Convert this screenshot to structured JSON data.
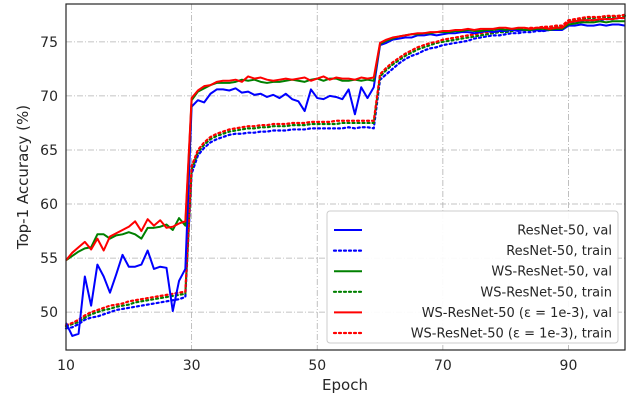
{
  "chart_data": {
    "type": "line",
    "title": "",
    "xlabel": "Epoch",
    "ylabel": "Top-1 Accuracy (%)",
    "xlim": [
      10,
      99
    ],
    "ylim": [
      46.5,
      78.5
    ],
    "xticks": [
      10,
      30,
      50,
      70,
      90
    ],
    "yticks": [
      50,
      55,
      60,
      65,
      70,
      75
    ],
    "xtick_labels": [
      "10",
      "30",
      "50",
      "70",
      "90"
    ],
    "ytick_labels": [
      "50",
      "55",
      "60",
      "65",
      "70",
      "75"
    ],
    "grid": true,
    "legend_position": "lower-right",
    "x": [
      10,
      11,
      12,
      13,
      14,
      15,
      16,
      17,
      18,
      19,
      20,
      21,
      22,
      23,
      24,
      25,
      26,
      27,
      28,
      29,
      30,
      31,
      32,
      33,
      34,
      35,
      36,
      37,
      38,
      39,
      40,
      41,
      42,
      43,
      44,
      45,
      46,
      47,
      48,
      49,
      50,
      51,
      52,
      53,
      54,
      55,
      56,
      57,
      58,
      59,
      60,
      61,
      62,
      63,
      64,
      65,
      66,
      67,
      68,
      69,
      70,
      71,
      72,
      73,
      74,
      75,
      76,
      77,
      78,
      79,
      80,
      81,
      82,
      83,
      84,
      85,
      86,
      87,
      88,
      89,
      90,
      91,
      92,
      93,
      94,
      95,
      96,
      97,
      98,
      99
    ],
    "series": [
      {
        "name": "ResNet-50, val",
        "color": "#0000ff",
        "style": "solid",
        "values": [
          49.0,
          47.8,
          48.0,
          53.3,
          50.6,
          54.4,
          53.3,
          51.8,
          53.5,
          55.3,
          54.2,
          54.2,
          54.4,
          55.7,
          54.0,
          54.2,
          54.1,
          50.1,
          52.9,
          54.0,
          69.0,
          69.6,
          69.4,
          70.2,
          70.6,
          70.6,
          70.5,
          70.7,
          70.3,
          70.4,
          70.1,
          70.2,
          69.9,
          70.1,
          69.8,
          70.2,
          69.7,
          69.5,
          68.6,
          70.6,
          69.8,
          69.7,
          70.0,
          69.9,
          69.7,
          70.6,
          68.3,
          70.8,
          69.8,
          70.8,
          74.7,
          74.9,
          75.2,
          75.3,
          75.4,
          75.4,
          75.6,
          75.6,
          75.7,
          75.6,
          75.7,
          75.8,
          75.8,
          75.9,
          75.9,
          75.8,
          75.9,
          76.0,
          75.9,
          76.0,
          76.0,
          76.1,
          76.0,
          76.1,
          76.1,
          76.1,
          76.0,
          76.1,
          76.1,
          76.1,
          76.5,
          76.5,
          76.6,
          76.5,
          76.5,
          76.6,
          76.5,
          76.6,
          76.6,
          76.5
        ]
      },
      {
        "name": "ResNet-50, train",
        "color": "#0000ff",
        "style": "dotted",
        "values": [
          48.5,
          48.6,
          48.9,
          49.3,
          49.5,
          49.6,
          49.8,
          50.0,
          50.2,
          50.3,
          50.4,
          50.5,
          50.6,
          50.7,
          50.8,
          50.9,
          51.0,
          51.1,
          51.2,
          51.4,
          62.8,
          64.5,
          65.2,
          65.7,
          66.0,
          66.2,
          66.4,
          66.5,
          66.5,
          66.6,
          66.6,
          66.7,
          66.7,
          66.8,
          66.8,
          66.8,
          66.9,
          66.9,
          66.9,
          67.0,
          67.0,
          67.0,
          67.0,
          67.0,
          67.0,
          67.1,
          67.0,
          67.1,
          67.1,
          67.0,
          71.5,
          72.0,
          72.5,
          73.0,
          73.4,
          73.7,
          73.9,
          74.2,
          74.4,
          74.5,
          74.7,
          74.8,
          74.9,
          75.0,
          75.1,
          75.3,
          75.4,
          75.5,
          75.6,
          75.6,
          75.7,
          75.8,
          75.8,
          75.9,
          75.9,
          76.0,
          76.0,
          76.1,
          76.1,
          76.2,
          76.6,
          76.8,
          76.9,
          77.0,
          77.0,
          77.0,
          77.1,
          77.1,
          77.2,
          77.2
        ]
      },
      {
        "name": "WS-ResNet-50, val",
        "color": "#008000",
        "style": "solid",
        "values": [
          54.8,
          55.2,
          55.6,
          55.9,
          56.0,
          57.2,
          57.2,
          56.8,
          57.1,
          57.2,
          57.4,
          57.2,
          56.8,
          57.8,
          57.8,
          57.9,
          58.1,
          57.6,
          58.7,
          58.0,
          69.6,
          70.4,
          70.7,
          71.0,
          71.2,
          71.2,
          71.2,
          71.3,
          71.5,
          71.4,
          71.5,
          71.3,
          71.2,
          71.3,
          71.3,
          71.4,
          71.5,
          71.4,
          71.3,
          71.5,
          71.6,
          71.4,
          71.6,
          71.6,
          71.4,
          71.4,
          71.5,
          71.4,
          71.5,
          71.4,
          74.8,
          75.1,
          75.3,
          75.5,
          75.6,
          75.7,
          75.7,
          75.8,
          75.8,
          75.9,
          75.9,
          75.9,
          76.0,
          76.0,
          76.1,
          76.0,
          76.0,
          76.1,
          76.1,
          76.2,
          76.1,
          76.2,
          76.2,
          76.1,
          76.1,
          76.2,
          76.2,
          76.1,
          76.2,
          76.2,
          76.6,
          76.7,
          76.8,
          76.8,
          76.8,
          76.9,
          76.8,
          76.9,
          76.9,
          76.9
        ]
      },
      {
        "name": "WS-ResNet-50, train",
        "color": "#008000",
        "style": "dotted",
        "values": [
          48.7,
          48.9,
          49.1,
          49.5,
          49.8,
          50.0,
          50.2,
          50.3,
          50.5,
          50.6,
          50.7,
          50.9,
          51.0,
          51.1,
          51.2,
          51.3,
          51.4,
          51.5,
          51.6,
          51.7,
          63.2,
          64.8,
          65.5,
          66.0,
          66.3,
          66.5,
          66.7,
          66.8,
          66.9,
          67.0,
          67.0,
          67.1,
          67.1,
          67.2,
          67.2,
          67.2,
          67.3,
          67.3,
          67.3,
          67.4,
          67.4,
          67.4,
          67.4,
          67.4,
          67.5,
          67.5,
          67.5,
          67.5,
          67.5,
          67.5,
          71.8,
          72.4,
          72.9,
          73.3,
          73.7,
          74.0,
          74.3,
          74.5,
          74.7,
          74.9,
          75.0,
          75.1,
          75.2,
          75.3,
          75.4,
          75.5,
          75.6,
          75.7,
          75.8,
          75.9,
          75.9,
          76.0,
          76.1,
          76.1,
          76.2,
          76.2,
          76.3,
          76.3,
          76.4,
          76.4,
          76.9,
          77.0,
          77.1,
          77.2,
          77.2,
          77.3,
          77.3,
          77.3,
          77.4,
          77.4
        ]
      },
      {
        "name": "WS-ResNet-50 (ε = 1e-3), val",
        "color": "#ff0000",
        "style": "solid",
        "values": [
          54.8,
          55.5,
          56.0,
          56.5,
          55.8,
          56.8,
          55.7,
          57.0,
          57.3,
          57.6,
          57.9,
          58.4,
          57.5,
          58.6,
          58.0,
          58.5,
          57.8,
          57.9,
          58.2,
          58.4,
          69.8,
          70.5,
          70.9,
          71.0,
          71.3,
          71.4,
          71.4,
          71.5,
          71.3,
          71.8,
          71.6,
          71.7,
          71.5,
          71.4,
          71.5,
          71.6,
          71.5,
          71.6,
          71.7,
          71.4,
          71.6,
          71.8,
          71.5,
          71.7,
          71.6,
          71.6,
          71.5,
          71.7,
          71.6,
          71.7,
          74.9,
          75.2,
          75.4,
          75.5,
          75.6,
          75.7,
          75.8,
          75.8,
          75.9,
          75.9,
          76.0,
          76.0,
          76.1,
          76.1,
          76.2,
          76.1,
          76.2,
          76.2,
          76.2,
          76.3,
          76.3,
          76.2,
          76.3,
          76.3,
          76.2,
          76.3,
          76.3,
          76.2,
          76.3,
          76.3,
          76.8,
          76.9,
          77.0,
          77.0,
          77.0,
          77.1,
          77.1,
          77.1,
          77.2,
          77.2
        ]
      },
      {
        "name": "WS-ResNet-50 (ε = 1e-3), train",
        "color": "#ff0000",
        "style": "dotted",
        "values": [
          48.8,
          49.0,
          49.3,
          49.7,
          50.0,
          50.2,
          50.4,
          50.6,
          50.7,
          50.8,
          51.0,
          51.1,
          51.2,
          51.3,
          51.4,
          51.5,
          51.6,
          51.7,
          51.8,
          51.9,
          63.5,
          65.0,
          65.7,
          66.2,
          66.5,
          66.7,
          66.9,
          67.0,
          67.1,
          67.2,
          67.2,
          67.3,
          67.3,
          67.4,
          67.4,
          67.4,
          67.5,
          67.5,
          67.5,
          67.6,
          67.6,
          67.6,
          67.6,
          67.7,
          67.7,
          67.7,
          67.7,
          67.7,
          67.7,
          67.7,
          72.0,
          72.6,
          73.1,
          73.5,
          73.9,
          74.2,
          74.5,
          74.7,
          74.9,
          75.0,
          75.2,
          75.3,
          75.4,
          75.5,
          75.6,
          75.7,
          75.8,
          75.9,
          75.9,
          76.0,
          76.1,
          76.1,
          76.2,
          76.2,
          76.3,
          76.3,
          76.4,
          76.4,
          76.5,
          76.5,
          77.0,
          77.1,
          77.2,
          77.3,
          77.3,
          77.3,
          77.4,
          77.4,
          77.4,
          77.5
        ]
      }
    ]
  }
}
